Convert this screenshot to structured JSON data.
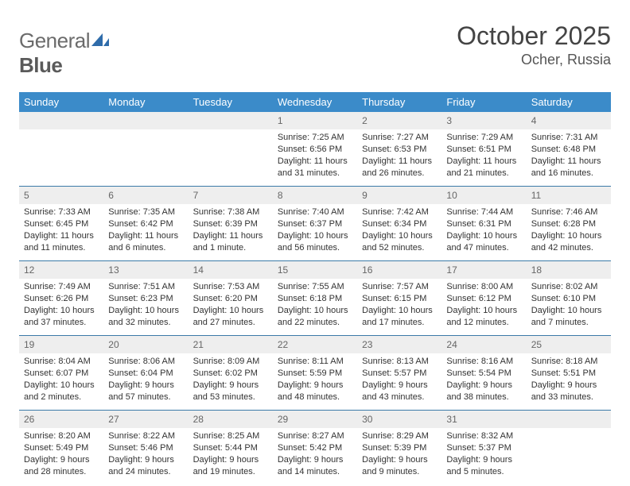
{
  "brand": {
    "word1": "General",
    "word2": "Blue"
  },
  "title": "October 2025",
  "location": "Ocher, Russia",
  "daysOfWeek": [
    "Sunday",
    "Monday",
    "Tuesday",
    "Wednesday",
    "Thursday",
    "Friday",
    "Saturday"
  ],
  "colors": {
    "header_bg": "#3b8bc9",
    "header_text": "#ffffff",
    "row_divider": "#3b7aa8",
    "daynum_bg": "#eeeeee",
    "daynum_text": "#666666",
    "body_text": "#333333",
    "logo_accent": "#2f6caa"
  },
  "weeks": [
    [
      null,
      null,
      null,
      {
        "n": "1",
        "sunrise": "7:25 AM",
        "sunset": "6:56 PM",
        "day_h": "11",
        "day_m": "31"
      },
      {
        "n": "2",
        "sunrise": "7:27 AM",
        "sunset": "6:53 PM",
        "day_h": "11",
        "day_m": "26"
      },
      {
        "n": "3",
        "sunrise": "7:29 AM",
        "sunset": "6:51 PM",
        "day_h": "11",
        "day_m": "21"
      },
      {
        "n": "4",
        "sunrise": "7:31 AM",
        "sunset": "6:48 PM",
        "day_h": "11",
        "day_m": "16"
      }
    ],
    [
      {
        "n": "5",
        "sunrise": "7:33 AM",
        "sunset": "6:45 PM",
        "day_h": "11",
        "day_m": "11"
      },
      {
        "n": "6",
        "sunrise": "7:35 AM",
        "sunset": "6:42 PM",
        "day_h": "11",
        "day_m": "6"
      },
      {
        "n": "7",
        "sunrise": "7:38 AM",
        "sunset": "6:39 PM",
        "day_h": "11",
        "day_m": "1"
      },
      {
        "n": "8",
        "sunrise": "7:40 AM",
        "sunset": "6:37 PM",
        "day_h": "10",
        "day_m": "56"
      },
      {
        "n": "9",
        "sunrise": "7:42 AM",
        "sunset": "6:34 PM",
        "day_h": "10",
        "day_m": "52"
      },
      {
        "n": "10",
        "sunrise": "7:44 AM",
        "sunset": "6:31 PM",
        "day_h": "10",
        "day_m": "47"
      },
      {
        "n": "11",
        "sunrise": "7:46 AM",
        "sunset": "6:28 PM",
        "day_h": "10",
        "day_m": "42"
      }
    ],
    [
      {
        "n": "12",
        "sunrise": "7:49 AM",
        "sunset": "6:26 PM",
        "day_h": "10",
        "day_m": "37"
      },
      {
        "n": "13",
        "sunrise": "7:51 AM",
        "sunset": "6:23 PM",
        "day_h": "10",
        "day_m": "32"
      },
      {
        "n": "14",
        "sunrise": "7:53 AM",
        "sunset": "6:20 PM",
        "day_h": "10",
        "day_m": "27"
      },
      {
        "n": "15",
        "sunrise": "7:55 AM",
        "sunset": "6:18 PM",
        "day_h": "10",
        "day_m": "22"
      },
      {
        "n": "16",
        "sunrise": "7:57 AM",
        "sunset": "6:15 PM",
        "day_h": "10",
        "day_m": "17"
      },
      {
        "n": "17",
        "sunrise": "8:00 AM",
        "sunset": "6:12 PM",
        "day_h": "10",
        "day_m": "12"
      },
      {
        "n": "18",
        "sunrise": "8:02 AM",
        "sunset": "6:10 PM",
        "day_h": "10",
        "day_m": "7"
      }
    ],
    [
      {
        "n": "19",
        "sunrise": "8:04 AM",
        "sunset": "6:07 PM",
        "day_h": "10",
        "day_m": "2"
      },
      {
        "n": "20",
        "sunrise": "8:06 AM",
        "sunset": "6:04 PM",
        "day_h": "9",
        "day_m": "57"
      },
      {
        "n": "21",
        "sunrise": "8:09 AM",
        "sunset": "6:02 PM",
        "day_h": "9",
        "day_m": "53"
      },
      {
        "n": "22",
        "sunrise": "8:11 AM",
        "sunset": "5:59 PM",
        "day_h": "9",
        "day_m": "48"
      },
      {
        "n": "23",
        "sunrise": "8:13 AM",
        "sunset": "5:57 PM",
        "day_h": "9",
        "day_m": "43"
      },
      {
        "n": "24",
        "sunrise": "8:16 AM",
        "sunset": "5:54 PM",
        "day_h": "9",
        "day_m": "38"
      },
      {
        "n": "25",
        "sunrise": "8:18 AM",
        "sunset": "5:51 PM",
        "day_h": "9",
        "day_m": "33"
      }
    ],
    [
      {
        "n": "26",
        "sunrise": "8:20 AM",
        "sunset": "5:49 PM",
        "day_h": "9",
        "day_m": "28"
      },
      {
        "n": "27",
        "sunrise": "8:22 AM",
        "sunset": "5:46 PM",
        "day_h": "9",
        "day_m": "24"
      },
      {
        "n": "28",
        "sunrise": "8:25 AM",
        "sunset": "5:44 PM",
        "day_h": "9",
        "day_m": "19"
      },
      {
        "n": "29",
        "sunrise": "8:27 AM",
        "sunset": "5:42 PM",
        "day_h": "9",
        "day_m": "14"
      },
      {
        "n": "30",
        "sunrise": "8:29 AM",
        "sunset": "5:39 PM",
        "day_h": "9",
        "day_m": "9"
      },
      {
        "n": "31",
        "sunrise": "8:32 AM",
        "sunset": "5:37 PM",
        "day_h": "9",
        "day_m": "5"
      },
      null
    ]
  ]
}
